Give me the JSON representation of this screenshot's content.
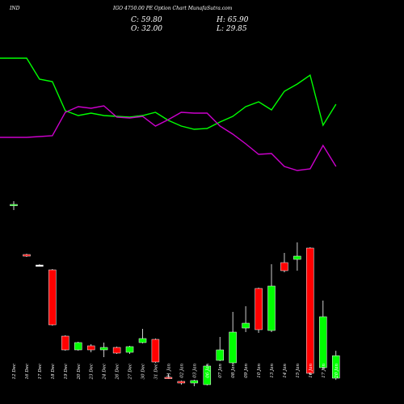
{
  "header": {
    "symbol": "IND",
    "title": "IGO 4750.00  PE Option  Chart MunafaSutra.com",
    "close_label": "C: 59.80",
    "open_label": "O: 32.00",
    "high_label": "H: 65.90",
    "low_label": "L: 29.85"
  },
  "chart_data": {
    "type": "candlestick",
    "colors": {
      "up": "#00ff00",
      "down": "#ff0000",
      "line_green": "#00ff00",
      "line_magenta": "#cc00cc",
      "neutral": "#ffffff"
    },
    "categories": [
      "12 Dec",
      "16 Dec",
      "17 Dec",
      "18 Dec",
      "19 Dec",
      "20 Dec",
      "23 Dec",
      "24 Dec",
      "26 Dec",
      "27 Dec",
      "30 Dec",
      "31 Dec",
      "01 Jan",
      "02 Jan",
      "03 Jan",
      "06 Jan",
      "07 Jan",
      "08 Jan",
      "09 Jan",
      "10 Jan",
      "13 Jan",
      "14 Jan",
      "15 Jan",
      "16 Jan",
      "17 Jan",
      "20 Jan"
    ],
    "candles": [
      {
        "open": 246,
        "close": 247,
        "high": 251,
        "low": 240
      },
      {
        "open": 185,
        "close": 183,
        "high": 186,
        "low": 182
      },
      {
        "open": 172,
        "close": 172,
        "high": 173,
        "low": 171
      },
      {
        "open": 166,
        "close": 98,
        "high": 167,
        "low": 97
      },
      {
        "open": 84,
        "close": 67,
        "high": 85,
        "low": 66
      },
      {
        "open": 67,
        "close": 76,
        "high": 77,
        "low": 66
      },
      {
        "open": 72,
        "close": 67,
        "high": 74,
        "low": 64
      },
      {
        "open": 67,
        "close": 70,
        "high": 76,
        "low": 58
      },
      {
        "open": 70,
        "close": 63,
        "high": 71,
        "low": 62
      },
      {
        "open": 64,
        "close": 71,
        "high": 72,
        "low": 62
      },
      {
        "open": 76,
        "close": 81,
        "high": 93,
        "low": 75
      },
      {
        "open": 80,
        "close": 52,
        "high": 81,
        "low": 51
      },
      {
        "open": 33,
        "close": 32,
        "high": 37,
        "low": 31
      },
      {
        "open": 28,
        "close": 26,
        "high": 29,
        "low": 24
      },
      {
        "open": 26,
        "close": 29,
        "high": 30,
        "low": 22
      },
      {
        "open": 24,
        "close": 47,
        "high": 49,
        "low": 23
      },
      {
        "open": 54,
        "close": 67,
        "high": 83,
        "low": 53
      },
      {
        "open": 51,
        "close": 89,
        "high": 114,
        "low": 50
      },
      {
        "open": 94,
        "close": 100,
        "high": 121,
        "low": 89
      },
      {
        "open": 143,
        "close": 92,
        "high": 144,
        "low": 88
      },
      {
        "open": 91,
        "close": 146,
        "high": 173,
        "low": 89
      },
      {
        "open": 175,
        "close": 165,
        "high": 187,
        "low": 163
      },
      {
        "open": 179,
        "close": 183,
        "high": 200,
        "low": 165
      },
      {
        "open": 193,
        "close": 38,
        "high": 194,
        "low": 36
      },
      {
        "open": 45,
        "close": 108,
        "high": 128,
        "low": 43
      },
      {
        "open": 32,
        "close": 59.8,
        "high": 65.9,
        "low": 29.85
      }
    ],
    "series": [
      {
        "values": [
          428,
          428,
          402,
          399,
          363,
          357,
          360,
          357,
          356,
          355,
          357,
          361,
          351,
          344,
          340,
          341,
          349,
          356,
          368,
          374,
          364,
          387,
          396,
          407,
          345,
          371
        ]
      },
      {
        "values": [
          330,
          330,
          331,
          332,
          361,
          368,
          366,
          369,
          355,
          354,
          356,
          344,
          352,
          361,
          360,
          360,
          344,
          334,
          322,
          309,
          310,
          294,
          289,
          291,
          320,
          294
        ]
      }
    ]
  }
}
